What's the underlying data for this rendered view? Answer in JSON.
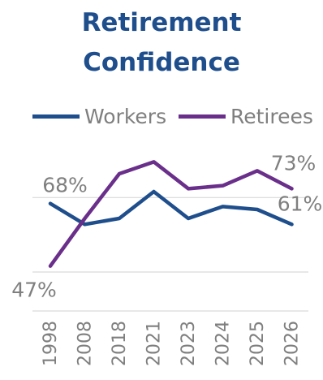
{
  "chart_data": {
    "type": "line",
    "title": "Retirement Confidence",
    "title_lines": [
      "Retirement",
      "Confidence"
    ],
    "categories": [
      "1998",
      "2008",
      "2018",
      "2021",
      "2023",
      "2024",
      "2025",
      "2026"
    ],
    "series": [
      {
        "name": "Workers",
        "color": "#1f4e8c",
        "values": [
          68,
          61,
          63,
          72,
          63,
          67,
          66,
          61
        ],
        "labels": [
          {
            "index": 0,
            "text": "68%"
          },
          {
            "index": 7,
            "text": "61%"
          }
        ]
      },
      {
        "name": "Retirees",
        "color": "#6a2f8a",
        "values": [
          47,
          63,
          78,
          82,
          73,
          74,
          79,
          73
        ],
        "labels": [
          {
            "index": 0,
            "text": "47%"
          },
          {
            "index": 7,
            "text": "73%"
          }
        ]
      }
    ],
    "ylim": [
      30,
      90
    ],
    "gridlines": [
      45,
      70
    ],
    "grid_color": "#d9d9d9",
    "grid": true,
    "legend_position": "top"
  }
}
